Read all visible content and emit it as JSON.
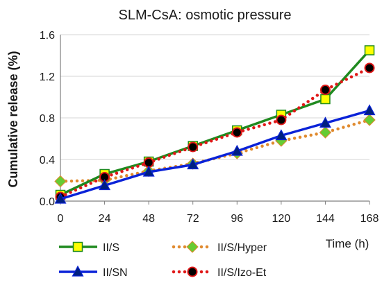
{
  "chart_data": {
    "type": "line",
    "title": "SLM-CsA: osmotic pressure",
    "xlabel": "Time (h)",
    "ylabel": "Cumulative release (%)",
    "x": [
      0,
      24,
      48,
      72,
      96,
      120,
      144,
      168
    ],
    "xticks": [
      "0",
      "24",
      "48",
      "72",
      "96",
      "120",
      "144",
      "168"
    ],
    "yticks": [
      "0.0",
      "0.4",
      "0.8",
      "1.2",
      "1.6"
    ],
    "xlim": [
      0,
      168
    ],
    "ylim": [
      0,
      1.6
    ],
    "grid": "horizontal",
    "legend_position": "bottom",
    "series": [
      {
        "name": "II/S",
        "values": [
          0.06,
          0.26,
          0.38,
          0.53,
          0.68,
          0.83,
          0.98,
          1.45
        ],
        "color": "#1f8a1f",
        "line": "solid",
        "marker": "square",
        "marker_fill": "#ffff00"
      },
      {
        "name": "II/S/Hyper",
        "values": [
          0.19,
          0.2,
          0.29,
          0.36,
          0.46,
          0.58,
          0.66,
          0.78
        ],
        "color": "#e08a2e",
        "line": "dotted",
        "marker": "diamond",
        "marker_fill": "#66cc33"
      },
      {
        "name": "II/SN",
        "values": [
          0.02,
          0.15,
          0.28,
          0.35,
          0.48,
          0.63,
          0.75,
          0.87
        ],
        "color": "#0a22d8",
        "line": "solid",
        "marker": "triangle",
        "marker_fill": "#002080"
      },
      {
        "name": "II/S/Izo-Et",
        "values": [
          0.04,
          0.23,
          0.37,
          0.52,
          0.66,
          0.78,
          1.07,
          1.28
        ],
        "color": "#e01818",
        "line": "dotted",
        "marker": "circle",
        "marker_fill": "#000000"
      }
    ]
  }
}
